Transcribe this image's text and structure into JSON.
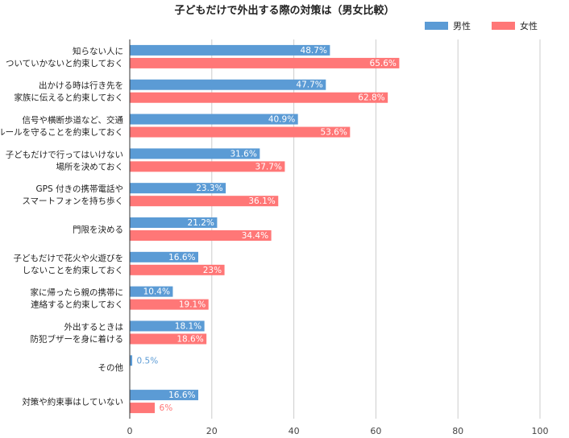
{
  "chart_data": {
    "type": "bar",
    "orientation": "horizontal",
    "title": "子どもだけで外出する際の対策は（男女比較）",
    "xlabel": "",
    "ylabel": "",
    "xlim": [
      0,
      100
    ],
    "x_ticks": [
      0,
      20,
      40,
      60,
      80,
      100
    ],
    "grid": true,
    "legend_position": "top-right",
    "categories": [
      [
        "知らない人に",
        "ついていかないと約束しておく"
      ],
      [
        "出かける時は行き先を",
        "家族に伝えると約束しておく"
      ],
      [
        "信号や横断歩道など、交通",
        "ルールを守ることを約束しておく"
      ],
      [
        "子どもだけで行ってはいけない",
        "場所を決めておく"
      ],
      [
        "GPS 付きの携帯電話や",
        "スマートフォンを持ち歩く"
      ],
      [
        "門限を決める"
      ],
      [
        "子どもだけで花火や火遊びを",
        "しないことを約束しておく"
      ],
      [
        "家に帰ったら親の携帯に",
        "連絡すると約束しておく"
      ],
      [
        "外出するときは",
        "防犯ブザーを身に着ける"
      ],
      [
        "その他"
      ],
      [
        "対策や約束事はしていない"
      ]
    ],
    "series": [
      {
        "name": "男性",
        "color": "#5b9bd5",
        "values": [
          48.7,
          47.7,
          40.9,
          31.6,
          23.3,
          21.2,
          16.6,
          10.4,
          18.1,
          0.5,
          16.6
        ],
        "labels": [
          "48.7%",
          "47.7%",
          "40.9%",
          "31.6%",
          "23.3%",
          "21.2%",
          "16.6%",
          "10.4%",
          "18.1%",
          "0.5%",
          "16.6%"
        ]
      },
      {
        "name": "女性",
        "color": "#ff7777",
        "values": [
          65.6,
          62.8,
          53.6,
          37.7,
          36.1,
          34.4,
          23,
          19.1,
          18.6,
          null,
          6
        ],
        "labels": [
          "65.6%",
          "62.8%",
          "53.6%",
          "37.7%",
          "36.1%",
          "34.4%",
          "23%",
          "19.1%",
          "18.6%",
          "",
          "6%"
        ]
      }
    ]
  }
}
